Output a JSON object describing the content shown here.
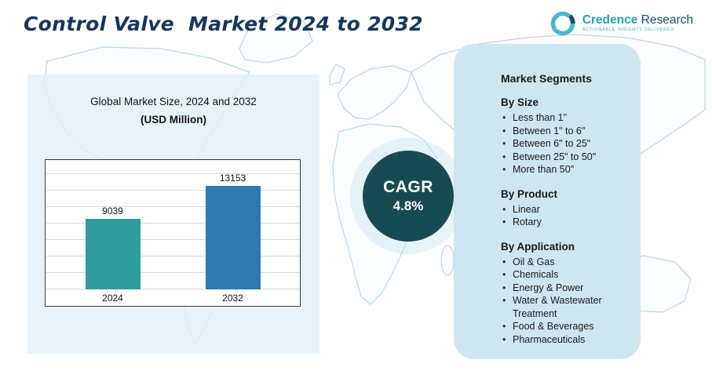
{
  "header": {
    "title": "Control Valve  Market 2024 to 2032",
    "logo": {
      "brand_primary": "Credence",
      "brand_secondary": " Research",
      "tagline": "Actionable Insights Delivered"
    }
  },
  "chart_panel": {
    "subtitle_line1": "Global Market Size, 2024 and 2032",
    "subtitle_line2": "(USD Million)"
  },
  "chart_data": {
    "type": "bar",
    "title": "Global Market Size, 2024 and 2032 (USD Million)",
    "categories": [
      "2024",
      "2032"
    ],
    "values": [
      9039,
      13153
    ],
    "xlabel": "",
    "ylabel": "USD Million",
    "ylim": [
      0,
      16000
    ],
    "grid": "horizontal",
    "bar_colors": [
      "#2f9d9d",
      "#3079b0"
    ]
  },
  "cagr": {
    "label": "CAGR",
    "value": "4.8%"
  },
  "segments": {
    "title": "Market Segments",
    "groups": [
      {
        "heading": "By Size",
        "items": [
          "Less than 1\"",
          "Between 1\" to 6\"",
          "Between 6\" to 25\"",
          "Between 25\" to 50\"",
          "More than 50\""
        ]
      },
      {
        "heading": "By Product",
        "items": [
          "Linear",
          "Rotary"
        ]
      },
      {
        "heading": "By Application",
        "items": [
          "Oil & Gas",
          "Chemicals",
          "Energy & Power",
          "Water & Wastewater Treatment",
          "Food & Beverages",
          "Pharmaceuticals"
        ]
      }
    ]
  },
  "colors": {
    "title_text": "#17365d",
    "bar_2024": "#2f9d9d",
    "bar_2032": "#3079b0",
    "cagr_circle": "#174b54",
    "left_panel": "#e2f0f8",
    "right_panel": "#cde6f2",
    "map_stroke": "#b9d7e7"
  }
}
